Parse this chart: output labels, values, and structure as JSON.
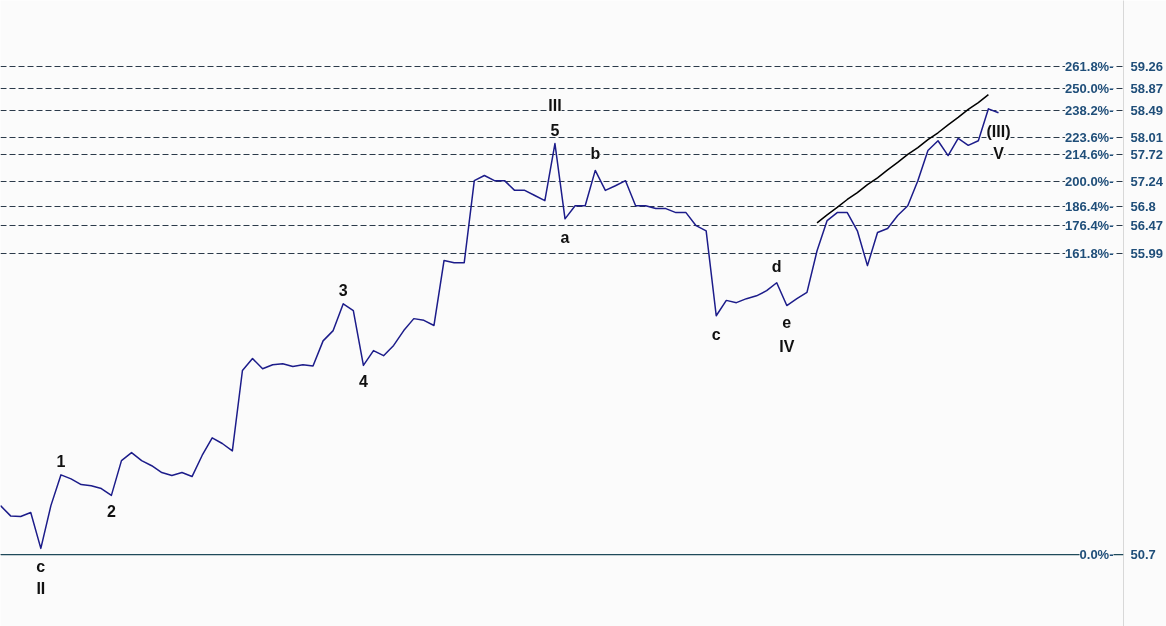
{
  "chart_data": {
    "type": "line",
    "categories": [
      null,
      null,
      null,
      null,
      null,
      null,
      null,
      null,
      null,
      null,
      null,
      null,
      null,
      null,
      null,
      null,
      null,
      null,
      null,
      null,
      null,
      null,
      null,
      null,
      null,
      null,
      null,
      null,
      null,
      null,
      null,
      null,
      null,
      null,
      null,
      null,
      null,
      null,
      null,
      null,
      null,
      null,
      null,
      null,
      null,
      null,
      null,
      null,
      null,
      null,
      null,
      null,
      null,
      null,
      null,
      null,
      null,
      null,
      null,
      null,
      null,
      null,
      null,
      null,
      null,
      null,
      null,
      null,
      null,
      null,
      null,
      null,
      null,
      null,
      null,
      null,
      null,
      null,
      null,
      null,
      null,
      null,
      null,
      null,
      null,
      null,
      null,
      null,
      null,
      null,
      null,
      null,
      null,
      null,
      null,
      null,
      null,
      null,
      null,
      null
    ],
    "series": [
      {
        "color": "#1c1c8a",
        "values": [
          51.56,
          51.38,
          51.37,
          51.44,
          50.81,
          51.56,
          52.1,
          52.03,
          51.93,
          51.91,
          51.86,
          51.74,
          52.35,
          52.49,
          52.35,
          52.26,
          52.14,
          52.09,
          52.14,
          52.07,
          52.44,
          52.75,
          52.65,
          52.52,
          53.93,
          54.14,
          53.96,
          54.03,
          54.05,
          54.0,
          54.03,
          54.01,
          54.45,
          54.63,
          55.1,
          54.98,
          54.02,
          54.28,
          54.19,
          54.37,
          54.63,
          54.84,
          54.81,
          54.72,
          55.86,
          55.82,
          55.82,
          57.26,
          57.35,
          57.26,
          57.26,
          57.09,
          57.09,
          57.0,
          56.91,
          57.91,
          56.59,
          56.82,
          56.82,
          57.44,
          57.09,
          57.17,
          57.26,
          56.82,
          56.82,
          56.77,
          56.77,
          56.7,
          56.7,
          56.47,
          56.38,
          54.89,
          55.16,
          55.12,
          55.19,
          55.24,
          55.33,
          55.47,
          55.07,
          55.19,
          55.3,
          56.03,
          56.56,
          56.7,
          56.7,
          56.38,
          55.77,
          56.35,
          56.42,
          56.65,
          56.82,
          57.26,
          57.79,
          57.96,
          57.7,
          58.0,
          57.88,
          57.96,
          58.52,
          58.45
        ]
      },
      {
        "type": "line",
        "color": "#000000",
        "values": [
          null,
          null,
          null,
          null,
          null,
          null,
          null,
          null,
          null,
          null,
          null,
          null,
          null,
          null,
          null,
          null,
          null,
          null,
          null,
          null,
          null,
          null,
          null,
          null,
          null,
          null,
          null,
          null,
          null,
          null,
          null,
          null,
          null,
          null,
          null,
          null,
          null,
          null,
          null,
          null,
          null,
          null,
          null,
          null,
          null,
          null,
          null,
          null,
          null,
          null,
          null,
          null,
          null,
          null,
          null,
          null,
          null,
          null,
          null,
          null,
          null,
          null,
          null,
          null,
          null,
          null,
          null,
          null,
          null,
          null,
          null,
          null,
          null,
          null,
          null,
          null,
          null,
          null,
          null,
          null,
          null,
          56.52,
          56.66,
          56.79,
          56.93,
          57.05,
          57.19,
          57.31,
          57.45,
          57.58,
          57.72,
          57.84,
          57.98,
          58.1,
          58.24,
          58.37,
          58.51,
          58.63,
          58.77,
          null
        ]
      }
    ],
    "annotations": [
      {
        "text": "c",
        "y": 50.81
      },
      {
        "text": "II",
        "y": 50.81
      },
      {
        "text": "1",
        "y": 52.1
      },
      {
        "text": "2",
        "y": 51.74
      },
      {
        "text": "3",
        "y": 55.1
      },
      {
        "text": "4",
        "y": 54.02
      },
      {
        "text": "III",
        "y": 57.91
      },
      {
        "text": "5",
        "y": 57.91
      },
      {
        "text": "a",
        "y": 56.59
      },
      {
        "text": "b",
        "y": 57.44
      },
      {
        "text": "c",
        "y": 54.89
      },
      {
        "text": "d",
        "y": 55.47
      },
      {
        "text": "e",
        "y": 55.07
      },
      {
        "text": "IV",
        "y": 55.07
      },
      {
        "text": "(III)",
        "y": 58.45
      },
      {
        "text": "V",
        "y": 58.45
      },
      "261.8%-",
      "250.0%-",
      "238.2%-",
      "223.6%-",
      "214.6%-",
      "200.0%-",
      "186.4%-",
      "176.4%-",
      "161.8%-",
      "0.0%-"
    ],
    "ylim": [
      49.44,
      60.42
    ],
    "yticks": [
      59.26,
      58.87,
      58.49,
      58.01,
      57.72,
      57.24,
      56.8,
      56.47,
      55.99,
      50.7
    ],
    "grid": "y",
    "tick_labels": "y",
    "marker": "none",
    "line_style": "solid",
    "ref_lines": [
      {
        "axis": "y",
        "value": 50.7,
        "line_style": "solid",
        "color": "#1f4a5a"
      }
    ]
  }
}
